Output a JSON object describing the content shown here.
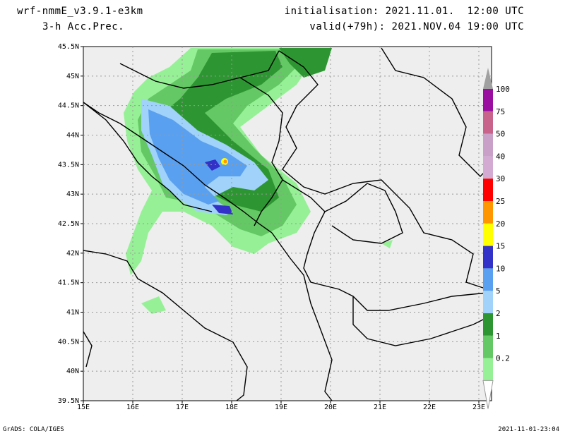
{
  "header": {
    "model": "wrf-nmmE_v3.9.1-e3km",
    "field": "3-h Acc.Prec.",
    "init": "initialisation: 2021.11.01.  12:00 UTC",
    "valid": "valid(+79h): 2021.NOV.04 19:00 UTC"
  },
  "footer": {
    "credit": "GrADS: COLA/IGES",
    "timestamp": "2021-11-01-23:04"
  },
  "axes": {
    "lat_labels": [
      "45.5N",
      "45N",
      "44.5N",
      "44N",
      "43.5N",
      "43N",
      "42.5N",
      "42N",
      "41.5N",
      "41N",
      "40.5N",
      "40N",
      "39.5N"
    ],
    "lon_labels": [
      "15E",
      "16E",
      "17E",
      "18E",
      "19E",
      "20E",
      "21E",
      "22E",
      "23E"
    ]
  },
  "colorbar": {
    "labels": [
      "100",
      "75",
      "50",
      "40",
      "30",
      "25",
      "20",
      "15",
      "10",
      "5",
      "2",
      "1",
      "0.2"
    ],
    "colors": [
      "#9a0fa0",
      "#c8648c",
      "#c8a0c8",
      "#d2aad2",
      "#ff0000",
      "#ff9600",
      "#ffff00",
      "#3232c8",
      "#5aa0f0",
      "#a0d2fa",
      "#2d9632",
      "#64c864",
      "#96f096"
    ]
  },
  "map": {
    "background": "#eeeeee",
    "grid_color": "#999999"
  }
}
